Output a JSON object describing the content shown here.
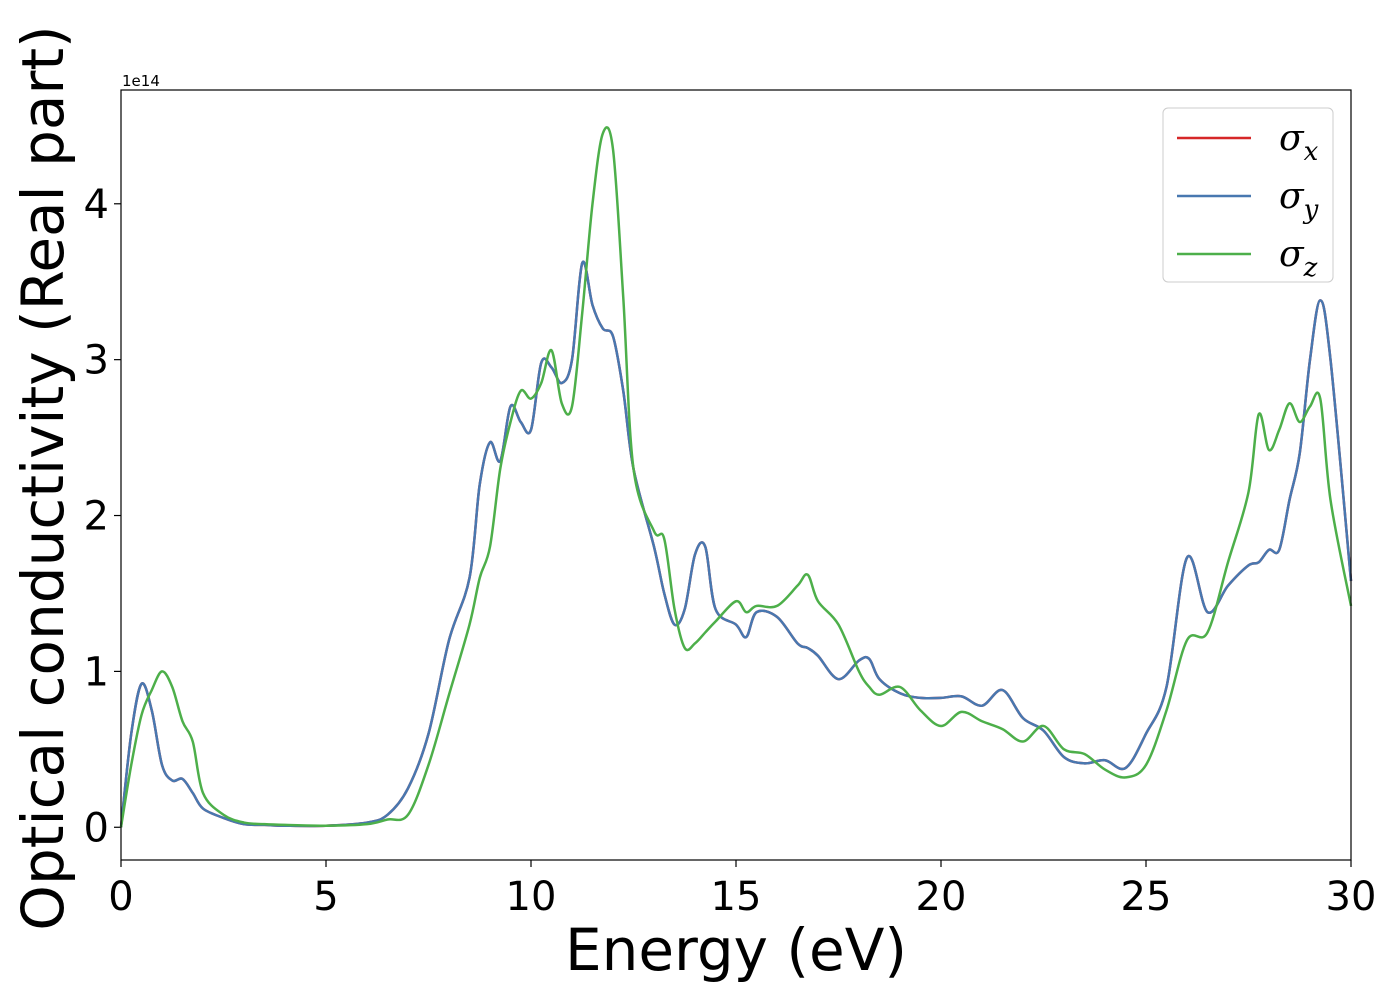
{
  "chart_data": {
    "type": "line",
    "xlabel": "Energy (eV)",
    "ylabel": "Optical conductivity (Real part)",
    "y_offset_label": "1e14",
    "xlim": [
      0,
      30
    ],
    "xticks": [
      0,
      5,
      10,
      15,
      20,
      25,
      30
    ],
    "ylim": [
      -0.21,
      4.73
    ],
    "yticks": [
      0,
      1,
      2,
      3,
      4
    ],
    "legend": "upper right",
    "x": [
      0,
      0.25,
      0.5,
      0.75,
      1,
      1.25,
      1.5,
      1.75,
      2,
      2.5,
      3,
      3.5,
      4,
      5,
      6,
      6.5,
      7,
      7.5,
      8,
      8.5,
      8.75,
      9,
      9.25,
      9.5,
      9.75,
      10,
      10.25,
      10.5,
      10.75,
      11,
      11.25,
      11.5,
      11.75,
      12,
      12.25,
      12.5,
      13,
      13.25,
      13.5,
      13.75,
      14,
      14.25,
      14.5,
      15,
      15.25,
      15.5,
      16,
      16.5,
      16.75,
      17,
      17.5,
      18,
      18.25,
      18.5,
      19,
      19.5,
      20,
      20.5,
      21,
      21.5,
      22,
      22.5,
      23,
      23.5,
      24,
      24.5,
      25,
      25.5,
      26,
      26.5,
      27,
      27.5,
      27.75,
      28,
      28.25,
      28.5,
      28.75,
      29,
      29.25,
      29.5,
      30
    ],
    "series": [
      {
        "name": "σx",
        "color": "#d62728",
        "values": [
          0,
          0.6,
          0.92,
          0.75,
          0.4,
          0.3,
          0.31,
          0.22,
          0.12,
          0.06,
          0.02,
          0.015,
          0.01,
          0.01,
          0.03,
          0.08,
          0.25,
          0.6,
          1.2,
          1.6,
          2.2,
          2.47,
          2.35,
          2.7,
          2.6,
          2.55,
          2.98,
          2.95,
          2.85,
          3.0,
          3.62,
          3.35,
          3.2,
          3.15,
          2.8,
          2.3,
          1.8,
          1.5,
          1.3,
          1.4,
          1.75,
          1.8,
          1.4,
          1.3,
          1.22,
          1.38,
          1.35,
          1.18,
          1.15,
          1.1,
          0.95,
          1.07,
          1.08,
          0.95,
          0.86,
          0.83,
          0.83,
          0.84,
          0.78,
          0.88,
          0.7,
          0.62,
          0.45,
          0.41,
          0.43,
          0.38,
          0.6,
          0.9,
          1.73,
          1.38,
          1.55,
          1.68,
          1.7,
          1.78,
          1.78,
          2.1,
          2.4,
          3.0,
          3.38,
          3.0,
          1.58
        ]
      },
      {
        "name": "σy",
        "color": "#4878b0",
        "values": [
          0,
          0.6,
          0.92,
          0.75,
          0.4,
          0.3,
          0.31,
          0.22,
          0.12,
          0.06,
          0.02,
          0.015,
          0.01,
          0.01,
          0.03,
          0.08,
          0.25,
          0.6,
          1.2,
          1.6,
          2.2,
          2.47,
          2.35,
          2.7,
          2.6,
          2.55,
          2.98,
          2.95,
          2.85,
          3.0,
          3.62,
          3.35,
          3.2,
          3.15,
          2.8,
          2.3,
          1.8,
          1.5,
          1.3,
          1.4,
          1.75,
          1.8,
          1.4,
          1.3,
          1.22,
          1.38,
          1.35,
          1.18,
          1.15,
          1.1,
          0.95,
          1.07,
          1.08,
          0.95,
          0.86,
          0.83,
          0.83,
          0.84,
          0.78,
          0.88,
          0.7,
          0.62,
          0.45,
          0.41,
          0.43,
          0.38,
          0.6,
          0.9,
          1.73,
          1.38,
          1.55,
          1.68,
          1.7,
          1.78,
          1.78,
          2.1,
          2.4,
          3.0,
          3.38,
          3.0,
          1.58
        ]
      },
      {
        "name": "σz",
        "color": "#4daf4a",
        "values": [
          0,
          0.4,
          0.72,
          0.88,
          1.0,
          0.9,
          0.68,
          0.55,
          0.22,
          0.08,
          0.03,
          0.02,
          0.015,
          0.01,
          0.02,
          0.05,
          0.08,
          0.4,
          0.85,
          1.3,
          1.6,
          1.8,
          2.3,
          2.6,
          2.8,
          2.75,
          2.85,
          3.06,
          2.72,
          2.7,
          3.3,
          4.0,
          4.45,
          4.35,
          3.4,
          2.3,
          1.9,
          1.85,
          1.4,
          1.15,
          1.18,
          1.25,
          1.32,
          1.45,
          1.38,
          1.42,
          1.42,
          1.55,
          1.62,
          1.45,
          1.3,
          1.0,
          0.9,
          0.85,
          0.9,
          0.75,
          0.65,
          0.74,
          0.68,
          0.63,
          0.55,
          0.65,
          0.5,
          0.47,
          0.37,
          0.32,
          0.4,
          0.75,
          1.2,
          1.25,
          1.7,
          2.15,
          2.65,
          2.42,
          2.55,
          2.72,
          2.6,
          2.7,
          2.75,
          2.1,
          1.42
        ]
      }
    ]
  }
}
